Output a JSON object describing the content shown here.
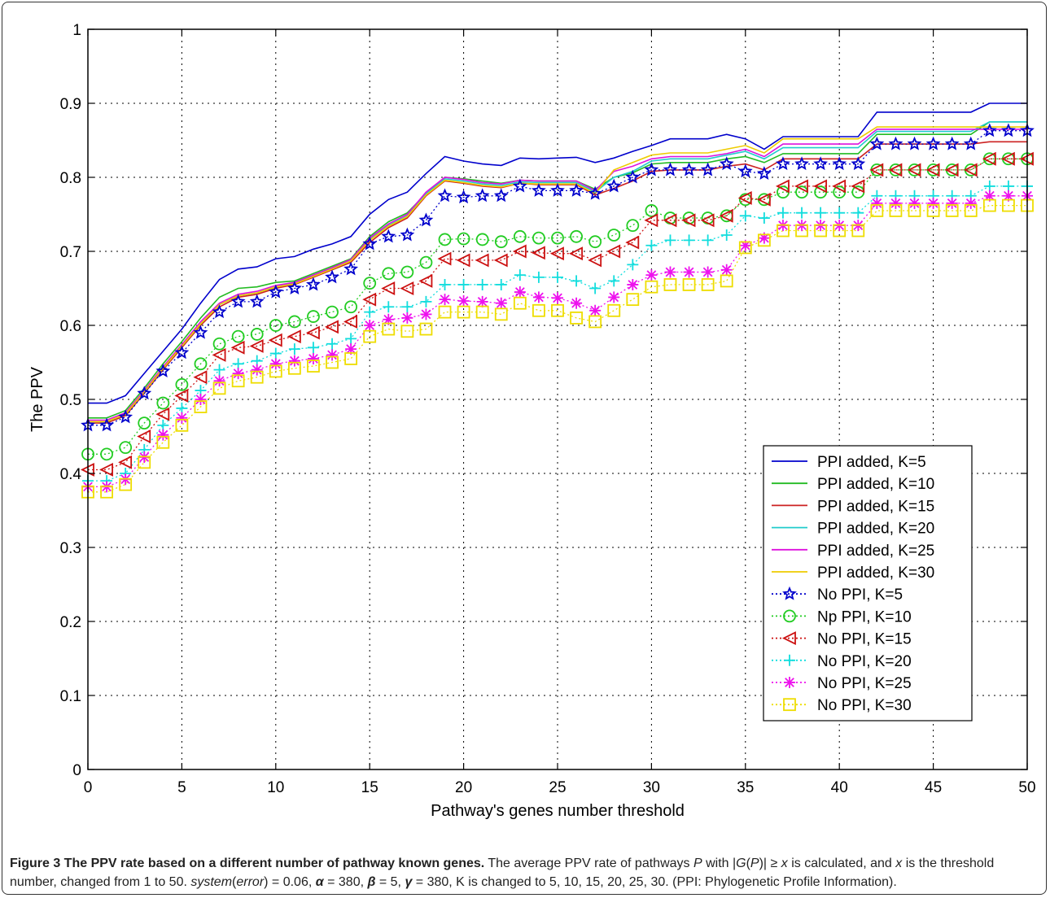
{
  "chart_data": {
    "type": "line",
    "ylabel": "The PPV",
    "xlabel": "Pathway's genes number threshold",
    "xlim": [
      0,
      50
    ],
    "ylim": [
      0,
      1
    ],
    "x_ticks": [
      "0",
      "5",
      "10",
      "15",
      "20",
      "25",
      "30",
      "35",
      "40",
      "45",
      "50"
    ],
    "y_ticks": [
      "0",
      "0.1",
      "0.2",
      "0.3",
      "0.4",
      "0.5",
      "0.6",
      "0.7",
      "0.8",
      "0.9",
      "1"
    ],
    "grid": true,
    "legend_position": "lower-right",
    "x": [
      0,
      1,
      2,
      3,
      4,
      5,
      6,
      7,
      8,
      9,
      10,
      11,
      12,
      13,
      14,
      15,
      16,
      17,
      18,
      19,
      20,
      21,
      22,
      23,
      24,
      25,
      26,
      27,
      28,
      29,
      30,
      31,
      32,
      33,
      34,
      35,
      36,
      37,
      38,
      39,
      40,
      41,
      42,
      43,
      44,
      45,
      46,
      47,
      48,
      49,
      50
    ],
    "series": [
      {
        "name": "PPI added, K=5",
        "color": "#0000cc",
        "style": "solid",
        "marker": "none",
        "values": [
          0.495,
          0.495,
          0.505,
          0.535,
          0.565,
          0.595,
          0.63,
          0.662,
          0.676,
          0.679,
          0.69,
          0.693,
          0.703,
          0.71,
          0.72,
          0.75,
          0.77,
          0.78,
          0.805,
          0.828,
          0.822,
          0.818,
          0.816,
          0.826,
          0.825,
          0.826,
          0.827,
          0.82,
          0.826,
          0.835,
          0.843,
          0.852,
          0.852,
          0.852,
          0.858,
          0.852,
          0.838,
          0.855,
          0.855,
          0.855,
          0.855,
          0.855,
          0.888,
          0.888,
          0.888,
          0.888,
          0.888,
          0.888,
          0.9,
          0.9,
          0.9
        ]
      },
      {
        "name": "PPI added, K=10",
        "color": "#22bb22",
        "style": "solid",
        "marker": "none",
        "values": [
          0.475,
          0.475,
          0.485,
          0.515,
          0.548,
          0.578,
          0.61,
          0.638,
          0.65,
          0.652,
          0.658,
          0.66,
          0.67,
          0.68,
          0.69,
          0.72,
          0.74,
          0.752,
          0.778,
          0.8,
          0.798,
          0.795,
          0.792,
          0.796,
          0.795,
          0.795,
          0.795,
          0.784,
          0.8,
          0.806,
          0.818,
          0.82,
          0.82,
          0.82,
          0.825,
          0.828,
          0.82,
          0.832,
          0.832,
          0.832,
          0.832,
          0.832,
          0.858,
          0.858,
          0.858,
          0.858,
          0.858,
          0.858,
          0.875,
          0.875,
          0.875
        ]
      },
      {
        "name": "PPI added, K=15",
        "color": "#cc2222",
        "style": "solid",
        "marker": "none",
        "values": [
          0.468,
          0.468,
          0.478,
          0.508,
          0.54,
          0.57,
          0.6,
          0.625,
          0.638,
          0.642,
          0.65,
          0.655,
          0.665,
          0.675,
          0.685,
          0.712,
          0.732,
          0.745,
          0.775,
          0.795,
          0.792,
          0.788,
          0.786,
          0.792,
          0.79,
          0.79,
          0.79,
          0.776,
          0.785,
          0.795,
          0.808,
          0.81,
          0.81,
          0.81,
          0.815,
          0.818,
          0.81,
          0.825,
          0.825,
          0.825,
          0.825,
          0.825,
          0.845,
          0.845,
          0.845,
          0.845,
          0.845,
          0.845,
          0.848,
          0.848,
          0.848
        ]
      },
      {
        "name": "PPI added, K=20",
        "color": "#22cccc",
        "style": "solid",
        "marker": "none",
        "values": [
          0.47,
          0.47,
          0.48,
          0.51,
          0.542,
          0.572,
          0.602,
          0.628,
          0.64,
          0.644,
          0.652,
          0.657,
          0.667,
          0.677,
          0.688,
          0.716,
          0.735,
          0.748,
          0.778,
          0.798,
          0.795,
          0.791,
          0.789,
          0.794,
          0.793,
          0.793,
          0.793,
          0.78,
          0.8,
          0.808,
          0.822,
          0.825,
          0.825,
          0.825,
          0.83,
          0.835,
          0.825,
          0.84,
          0.84,
          0.84,
          0.84,
          0.84,
          0.862,
          0.862,
          0.862,
          0.862,
          0.862,
          0.862,
          0.875,
          0.875,
          0.875
        ]
      },
      {
        "name": "PPI added, K=25",
        "color": "#dd11dd",
        "style": "solid",
        "marker": "none",
        "values": [
          0.472,
          0.472,
          0.482,
          0.512,
          0.544,
          0.574,
          0.605,
          0.63,
          0.642,
          0.646,
          0.654,
          0.658,
          0.668,
          0.678,
          0.689,
          0.718,
          0.737,
          0.75,
          0.78,
          0.8,
          0.797,
          0.793,
          0.791,
          0.796,
          0.795,
          0.795,
          0.795,
          0.782,
          0.808,
          0.815,
          0.825,
          0.828,
          0.828,
          0.828,
          0.832,
          0.838,
          0.828,
          0.845,
          0.845,
          0.845,
          0.845,
          0.845,
          0.865,
          0.865,
          0.865,
          0.865,
          0.865,
          0.865,
          0.865,
          0.865,
          0.865
        ]
      },
      {
        "name": "PPI added, K=30",
        "color": "#eecc00",
        "style": "solid",
        "marker": "none",
        "values": [
          0.47,
          0.47,
          0.48,
          0.51,
          0.542,
          0.572,
          0.602,
          0.628,
          0.64,
          0.644,
          0.652,
          0.656,
          0.666,
          0.676,
          0.687,
          0.715,
          0.734,
          0.747,
          0.776,
          0.796,
          0.793,
          0.789,
          0.787,
          0.792,
          0.791,
          0.791,
          0.791,
          0.778,
          0.81,
          0.82,
          0.83,
          0.833,
          0.833,
          0.833,
          0.838,
          0.843,
          0.833,
          0.852,
          0.852,
          0.852,
          0.852,
          0.852,
          0.868,
          0.868,
          0.868,
          0.868,
          0.868,
          0.868,
          0.868,
          0.868,
          0.868
        ]
      },
      {
        "name": "No PPI, K=5",
        "color": "#0000cc",
        "style": "dotted",
        "marker": "star",
        "values": [
          0.465,
          0.465,
          0.476,
          0.508,
          0.538,
          0.563,
          0.59,
          0.618,
          0.632,
          0.632,
          0.645,
          0.65,
          0.655,
          0.665,
          0.676,
          0.71,
          0.72,
          0.722,
          0.742,
          0.775,
          0.773,
          0.775,
          0.775,
          0.788,
          0.782,
          0.782,
          0.782,
          0.778,
          0.788,
          0.8,
          0.81,
          0.81,
          0.81,
          0.81,
          0.818,
          0.808,
          0.805,
          0.818,
          0.818,
          0.818,
          0.818,
          0.818,
          0.845,
          0.845,
          0.845,
          0.845,
          0.845,
          0.845,
          0.863,
          0.863,
          0.863
        ]
      },
      {
        "name": "Np PPI, K=10",
        "color": "#22cc22",
        "style": "dotted",
        "marker": "circle",
        "values": [
          0.426,
          0.426,
          0.435,
          0.468,
          0.495,
          0.52,
          0.548,
          0.575,
          0.585,
          0.588,
          0.6,
          0.605,
          0.612,
          0.618,
          0.625,
          0.657,
          0.67,
          0.672,
          0.685,
          0.716,
          0.717,
          0.716,
          0.713,
          0.72,
          0.718,
          0.718,
          0.72,
          0.713,
          0.722,
          0.735,
          0.755,
          0.745,
          0.745,
          0.745,
          0.748,
          0.77,
          0.77,
          0.78,
          0.78,
          0.78,
          0.78,
          0.78,
          0.81,
          0.81,
          0.81,
          0.81,
          0.81,
          0.81,
          0.825,
          0.825,
          0.825
        ]
      },
      {
        "name": "No PPI, K=15",
        "color": "#cc1111",
        "style": "dotted",
        "marker": "triangle-left",
        "values": [
          0.405,
          0.405,
          0.415,
          0.45,
          0.48,
          0.505,
          0.53,
          0.56,
          0.57,
          0.572,
          0.58,
          0.585,
          0.59,
          0.598,
          0.605,
          0.635,
          0.65,
          0.65,
          0.66,
          0.69,
          0.688,
          0.688,
          0.688,
          0.7,
          0.698,
          0.697,
          0.697,
          0.688,
          0.7,
          0.712,
          0.742,
          0.742,
          0.742,
          0.742,
          0.748,
          0.772,
          0.77,
          0.788,
          0.788,
          0.788,
          0.788,
          0.788,
          0.81,
          0.81,
          0.81,
          0.81,
          0.81,
          0.81,
          0.825,
          0.825,
          0.825
        ]
      },
      {
        "name": "No PPI, K=20",
        "color": "#11dddd",
        "style": "dotted",
        "marker": "plus",
        "values": [
          0.39,
          0.39,
          0.4,
          0.432,
          0.465,
          0.488,
          0.512,
          0.54,
          0.548,
          0.552,
          0.562,
          0.568,
          0.57,
          0.575,
          0.582,
          0.618,
          0.625,
          0.625,
          0.632,
          0.655,
          0.655,
          0.655,
          0.655,
          0.668,
          0.665,
          0.665,
          0.66,
          0.65,
          0.66,
          0.682,
          0.708,
          0.715,
          0.715,
          0.715,
          0.722,
          0.748,
          0.745,
          0.752,
          0.752,
          0.752,
          0.752,
          0.752,
          0.775,
          0.775,
          0.775,
          0.775,
          0.775,
          0.775,
          0.788,
          0.788,
          0.788
        ]
      },
      {
        "name": "No PPI, K=25",
        "color": "#ee11ee",
        "style": "dotted",
        "marker": "asterisk",
        "values": [
          0.382,
          0.382,
          0.392,
          0.422,
          0.452,
          0.475,
          0.5,
          0.525,
          0.535,
          0.54,
          0.548,
          0.552,
          0.555,
          0.56,
          0.568,
          0.6,
          0.608,
          0.61,
          0.615,
          0.635,
          0.633,
          0.632,
          0.63,
          0.645,
          0.638,
          0.637,
          0.63,
          0.62,
          0.638,
          0.655,
          0.668,
          0.672,
          0.672,
          0.672,
          0.675,
          0.708,
          0.718,
          0.735,
          0.735,
          0.735,
          0.735,
          0.735,
          0.765,
          0.765,
          0.765,
          0.765,
          0.765,
          0.765,
          0.775,
          0.775,
          0.775
        ]
      },
      {
        "name": "No PPI, K=30",
        "color": "#eedd00",
        "style": "dotted",
        "marker": "square",
        "values": [
          0.375,
          0.375,
          0.385,
          0.415,
          0.442,
          0.465,
          0.49,
          0.515,
          0.525,
          0.53,
          0.538,
          0.542,
          0.545,
          0.55,
          0.555,
          0.585,
          0.595,
          0.592,
          0.595,
          0.618,
          0.618,
          0.618,
          0.615,
          0.63,
          0.62,
          0.62,
          0.61,
          0.605,
          0.62,
          0.635,
          0.652,
          0.655,
          0.655,
          0.655,
          0.66,
          0.705,
          0.715,
          0.728,
          0.728,
          0.728,
          0.728,
          0.728,
          0.755,
          0.755,
          0.755,
          0.755,
          0.755,
          0.755,
          0.762,
          0.762,
          0.762
        ]
      }
    ]
  },
  "caption": {
    "title": "Figure 3 The PPV rate based on a different number of pathway known genes.",
    "line1_a": " The average PPV rate of pathways ",
    "P": "P",
    "line1_b": " with |",
    "G": "G",
    "paren_open": "(",
    "P2": "P",
    "line1_c": ")| ≥ ",
    "x1": "x",
    "line1_d": " is calculated, and ",
    "x2": "x",
    "line1_e": " is the threshold number, changed from 1 to 50. ",
    "system": "system",
    "error_open": "(",
    "error": "error",
    "line1_f": ") = 0.06, ",
    "alpha": "α",
    "line1_g": " = 380, ",
    "beta": "β",
    "line1_h": " = 5, ",
    "gamma": "γ",
    "line1_i": " = 380, K is changed to 5, 10, 15, 20, 25, 30. (PPI: Phylogenetic Profile Information)."
  }
}
